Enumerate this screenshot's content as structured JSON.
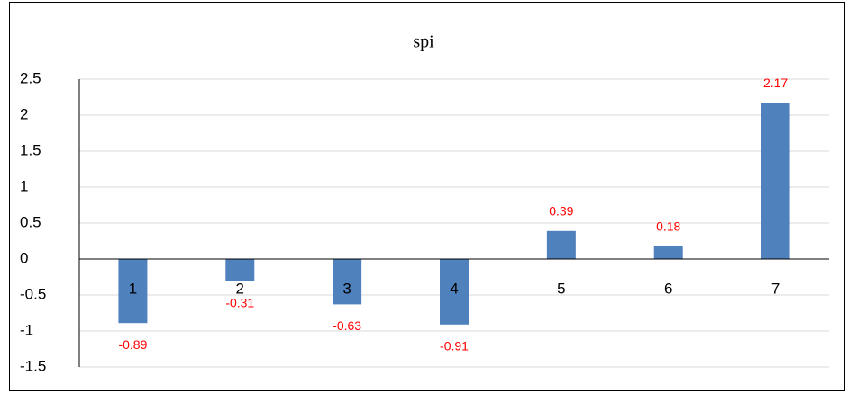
{
  "chart_data": {
    "type": "bar",
    "title": "spi",
    "categories": [
      "1",
      "2",
      "3",
      "4",
      "5",
      "6",
      "7"
    ],
    "values": [
      -0.89,
      -0.31,
      -0.63,
      -0.91,
      0.39,
      0.18,
      2.17
    ],
    "color": "#4f81bd",
    "label_color": "#ff0000",
    "ylim": [
      -1.5,
      2.5
    ],
    "yticks": [
      -1.5,
      -1,
      -0.5,
      0,
      0.5,
      1,
      1.5,
      2,
      2.5
    ],
    "grid": true
  }
}
